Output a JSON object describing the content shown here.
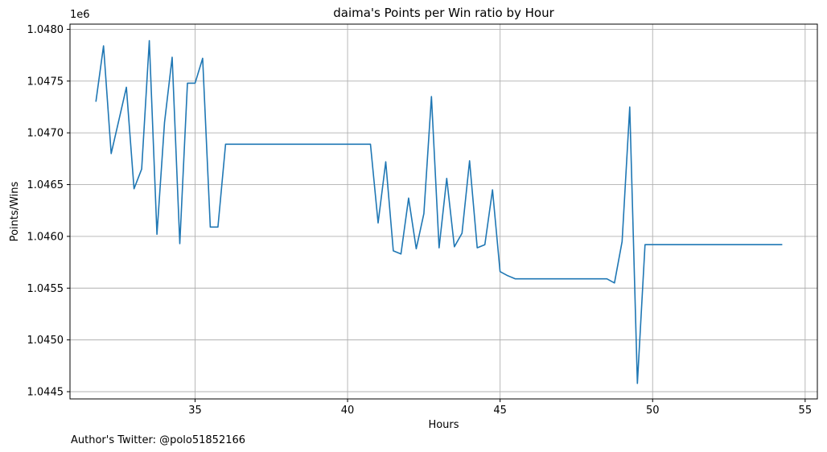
{
  "chart_data": {
    "type": "line",
    "title": "daima's Points per Win ratio by Hour",
    "xlabel": "Hours",
    "ylabel": "Points/Wins",
    "y_offset_label": "1e6",
    "xlim": [
      30.9,
      55.4
    ],
    "ylim": [
      1.04443,
      1.04805
    ],
    "x_ticks": [
      35,
      40,
      45,
      50,
      55
    ],
    "y_ticks": [
      1.0445,
      1.045,
      1.0455,
      1.046,
      1.0465,
      1.047,
      1.0475,
      1.048
    ],
    "x_tick_labels": [
      "35",
      "40",
      "45",
      "50",
      "55"
    ],
    "y_tick_labels": [
      "1.0445",
      "1.0450",
      "1.0455",
      "1.0460",
      "1.0465",
      "1.0470",
      "1.0475",
      "1.0480"
    ],
    "grid": true,
    "legend": "none",
    "series": [
      {
        "color": "#1f77b4",
        "x": [
          31.75,
          32.0,
          32.25,
          32.5,
          32.75,
          33.0,
          33.25,
          33.5,
          33.75,
          34.0,
          34.25,
          34.5,
          34.75,
          35.0,
          35.25,
          35.5,
          35.75,
          36.0,
          36.25,
          40.75,
          41.0,
          41.25,
          41.5,
          41.75,
          42.0,
          42.25,
          42.5,
          42.75,
          43.0,
          43.25,
          43.5,
          43.75,
          44.0,
          44.25,
          44.5,
          44.75,
          45.0,
          45.25,
          45.5,
          45.75,
          48.5,
          48.75,
          49.0,
          49.25,
          49.5,
          49.75,
          50.0,
          54.25
        ],
        "y": [
          1.0473,
          1.04784,
          1.0468,
          1.04712,
          1.04744,
          1.04646,
          1.04665,
          1.04789,
          1.04602,
          1.0471,
          1.04773,
          1.04593,
          1.04748,
          1.04748,
          1.04772,
          1.04609,
          1.04609,
          1.04689,
          1.04689,
          1.04689,
          1.04613,
          1.04672,
          1.04586,
          1.04583,
          1.04637,
          1.04588,
          1.04622,
          1.04735,
          1.04589,
          1.04656,
          1.0459,
          1.04603,
          1.04673,
          1.04589,
          1.04592,
          1.04645,
          1.04566,
          1.04562,
          1.04559,
          1.04559,
          1.04559,
          1.04555,
          1.04595,
          1.04725,
          1.04458,
          1.04592,
          1.04592,
          1.04592
        ]
      }
    ]
  },
  "footer": {
    "author_text": "Author's Twitter: @polo51852166"
  }
}
